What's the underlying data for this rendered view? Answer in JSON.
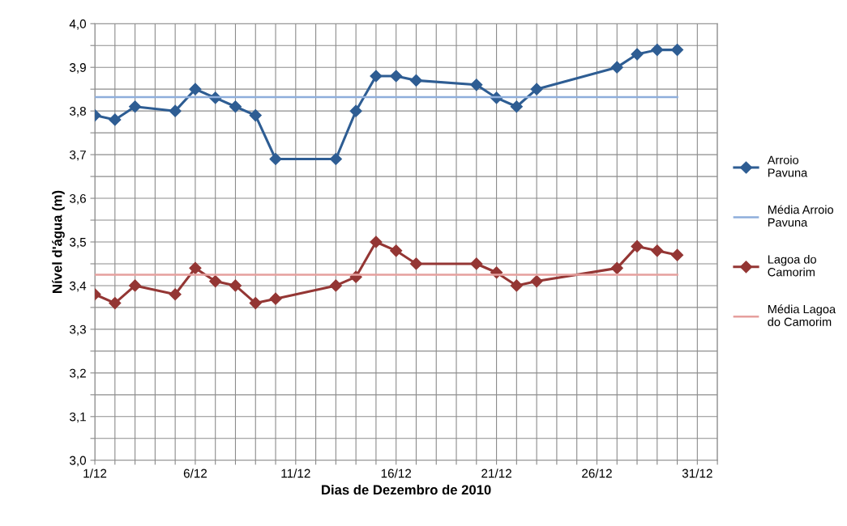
{
  "chart_data": {
    "type": "line",
    "xlabel": "Dias de Dezembro de 2010",
    "ylabel": "Nível d'água (m)",
    "xlim": [
      "2010-12-01",
      "2011-01-01"
    ],
    "xticks": [
      {
        "value": "2010-12-01",
        "label": "1/12"
      },
      {
        "value": "2010-12-02",
        "label": null
      },
      {
        "value": "2010-12-03",
        "label": null
      },
      {
        "value": "2010-12-04",
        "label": null
      },
      {
        "value": "2010-12-05",
        "label": null
      },
      {
        "value": "2010-12-06",
        "label": "6/12"
      },
      {
        "value": "2010-12-07",
        "label": null
      },
      {
        "value": "2010-12-08",
        "label": null
      },
      {
        "value": "2010-12-09",
        "label": null
      },
      {
        "value": "2010-12-10",
        "label": null
      },
      {
        "value": "2010-12-11",
        "label": "11/12"
      },
      {
        "value": "2010-12-12",
        "label": null
      },
      {
        "value": "2010-12-13",
        "label": null
      },
      {
        "value": "2010-12-14",
        "label": null
      },
      {
        "value": "2010-12-15",
        "label": null
      },
      {
        "value": "2010-12-16",
        "label": "16/12"
      },
      {
        "value": "2010-12-17",
        "label": null
      },
      {
        "value": "2010-12-18",
        "label": null
      },
      {
        "value": "2010-12-19",
        "label": null
      },
      {
        "value": "2010-12-20",
        "label": null
      },
      {
        "value": "2010-12-21",
        "label": "21/12"
      },
      {
        "value": "2010-12-22",
        "label": null
      },
      {
        "value": "2010-12-23",
        "label": null
      },
      {
        "value": "2010-12-24",
        "label": null
      },
      {
        "value": "2010-12-25",
        "label": null
      },
      {
        "value": "2010-12-26",
        "label": "26/12"
      },
      {
        "value": "2010-12-27",
        "label": null
      },
      {
        "value": "2010-12-28",
        "label": null
      },
      {
        "value": "2010-12-29",
        "label": null
      },
      {
        "value": "2010-12-30",
        "label": null
      },
      {
        "value": "2010-12-31",
        "label": "31/12"
      },
      {
        "value": "2011-01-01",
        "label": null
      }
    ],
    "ylim": [
      3.0,
      4.0
    ],
    "yticks": [
      {
        "value": 3.0,
        "label": "3,0"
      },
      {
        "value": 3.05,
        "label": null
      },
      {
        "value": 3.1,
        "label": "3,1"
      },
      {
        "value": 3.15,
        "label": null
      },
      {
        "value": 3.2,
        "label": "3,2"
      },
      {
        "value": 3.25,
        "label": null
      },
      {
        "value": 3.3,
        "label": "3,3"
      },
      {
        "value": 3.35,
        "label": null
      },
      {
        "value": 3.4,
        "label": "3,4"
      },
      {
        "value": 3.45,
        "label": null
      },
      {
        "value": 3.5,
        "label": "3,5"
      },
      {
        "value": 3.55,
        "label": null
      },
      {
        "value": 3.6,
        "label": "3,6"
      },
      {
        "value": 3.65,
        "label": null
      },
      {
        "value": 3.7,
        "label": "3,7"
      },
      {
        "value": 3.75,
        "label": null
      },
      {
        "value": 3.8,
        "label": "3,8"
      },
      {
        "value": 3.85,
        "label": null
      },
      {
        "value": 3.9,
        "label": "3,9"
      },
      {
        "value": 3.95,
        "label": null
      },
      {
        "value": 4.0,
        "label": "4,0"
      }
    ],
    "grid": true,
    "legend": "right",
    "series": [
      {
        "name": "Arroio Pavuna",
        "color": "#2e5d93",
        "marker": "diamond",
        "x": [
          "2010-12-01",
          "2010-12-02",
          "2010-12-03",
          "2010-12-05",
          "2010-12-06",
          "2010-12-07",
          "2010-12-08",
          "2010-12-09",
          "2010-12-10",
          "2010-12-13",
          "2010-12-14",
          "2010-12-15",
          "2010-12-16",
          "2010-12-17",
          "2010-12-20",
          "2010-12-21",
          "2010-12-22",
          "2010-12-23",
          "2010-12-27",
          "2010-12-28",
          "2010-12-29",
          "2010-12-30"
        ],
        "values": [
          3.79,
          3.78,
          3.81,
          3.8,
          3.85,
          3.83,
          3.81,
          3.79,
          3.69,
          3.69,
          3.8,
          3.88,
          3.88,
          3.87,
          3.86,
          3.83,
          3.81,
          3.85,
          3.9,
          3.93,
          3.94,
          3.94
        ]
      },
      {
        "name": "Média Arroio Pavuna",
        "color": "#8eaedb",
        "marker": "none",
        "x": [
          "2010-12-01",
          "2010-12-30"
        ],
        "values": [
          3.832,
          3.832
        ]
      },
      {
        "name": "Lagoa do Camorim",
        "color": "#943634",
        "marker": "diamond",
        "x": [
          "2010-12-01",
          "2010-12-02",
          "2010-12-03",
          "2010-12-05",
          "2010-12-06",
          "2010-12-07",
          "2010-12-08",
          "2010-12-09",
          "2010-12-10",
          "2010-12-13",
          "2010-12-14",
          "2010-12-15",
          "2010-12-16",
          "2010-12-17",
          "2010-12-20",
          "2010-12-21",
          "2010-12-22",
          "2010-12-23",
          "2010-12-27",
          "2010-12-28",
          "2010-12-29",
          "2010-12-30"
        ],
        "values": [
          3.38,
          3.36,
          3.4,
          3.38,
          3.44,
          3.41,
          3.4,
          3.36,
          3.37,
          3.4,
          3.42,
          3.5,
          3.48,
          3.45,
          3.45,
          3.43,
          3.4,
          3.41,
          3.44,
          3.49,
          3.48,
          3.47
        ]
      },
      {
        "name": "Média Lagoa do Camorim",
        "color": "#e6a09e",
        "marker": "none",
        "x": [
          "2010-12-01",
          "2010-12-30"
        ],
        "values": [
          3.425,
          3.425
        ]
      }
    ]
  }
}
